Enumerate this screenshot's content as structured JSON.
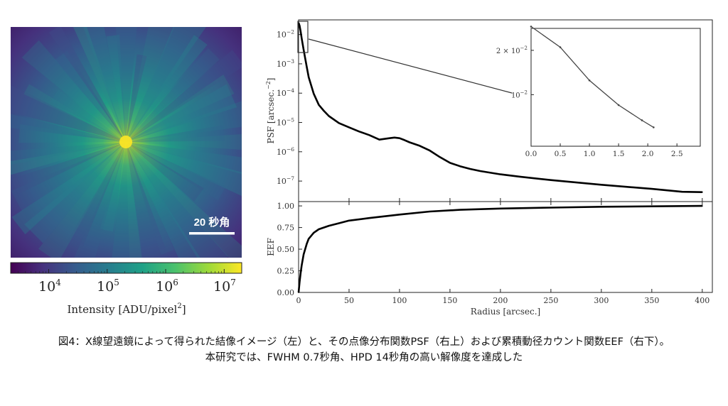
{
  "image_panel": {
    "scale_label": "20 秒角",
    "colorbar": {
      "ticks": [
        {
          "base": "10",
          "exp": "4"
        },
        {
          "base": "10",
          "exp": "5"
        },
        {
          "base": "10",
          "exp": "6"
        },
        {
          "base": "10",
          "exp": "7"
        }
      ],
      "label": "Intensity [ADU/pixel",
      "label_exp": "2",
      "label_close": "]",
      "colors": [
        "#440154",
        "#46327e",
        "#365c8d",
        "#277f8e",
        "#1fa187",
        "#4ac16d",
        "#a0da39",
        "#fde725"
      ]
    }
  },
  "chart_data": [
    {
      "type": "line",
      "name": "psf",
      "ylabel": "PSF [arcsec.",
      "ylabel_exp": "−2",
      "ylabel_close": "]",
      "yscale": "log",
      "xlim": [
        0,
        410
      ],
      "ylim_log10": [
        -7.7,
        -1.5
      ],
      "yticks": [
        {
          "base": "10",
          "exp": "−2",
          "log": -2
        },
        {
          "base": "10",
          "exp": "−3",
          "log": -3
        },
        {
          "base": "10",
          "exp": "−4",
          "log": -4
        },
        {
          "base": "10",
          "exp": "−5",
          "log": -5
        },
        {
          "base": "10",
          "exp": "−6",
          "log": -6
        },
        {
          "base": "10",
          "exp": "−7",
          "log": -7
        }
      ],
      "x": [
        0,
        1,
        2,
        3,
        5,
        8,
        10,
        15,
        20,
        25,
        30,
        40,
        50,
        60,
        70,
        80,
        90,
        95,
        100,
        105,
        110,
        120,
        130,
        140,
        150,
        160,
        170,
        180,
        200,
        220,
        250,
        300,
        350,
        380,
        400
      ],
      "y": [
        0.025,
        0.02,
        0.013,
        0.0075,
        0.003,
        0.0008,
        0.00035,
        9.5e-05,
        4e-05,
        2.5e-05,
        1.65e-05,
        9.5e-06,
        6.8e-06,
        4.9e-06,
        3.7e-06,
        2.6e-06,
        2.9e-06,
        3.05e-06,
        2.9e-06,
        2.5e-06,
        2.1e-06,
        1.6e-06,
        1.1e-06,
        6.6e-07,
        4.2e-07,
        3.2e-07,
        2.6e-07,
        2.2e-07,
        1.7e-07,
        1.4e-07,
        1.08e-07,
        7.5e-08,
        5.4e-08,
        4.3e-08,
        4.2e-08
      ]
    },
    {
      "type": "line",
      "name": "psf-inset",
      "yscale": "log",
      "xlim": [
        0,
        2.9
      ],
      "ylim_log10": [
        -2.35,
        -1.55
      ],
      "xticks": [
        "0.0",
        "0.5",
        "1.0",
        "1.5",
        "2.0",
        "2.5"
      ],
      "xtick_values": [
        0,
        0.5,
        1.0,
        1.5,
        2.0,
        2.5
      ],
      "yticks": [
        {
          "label": "2 × 10",
          "exp": "−2",
          "log": -1.699
        },
        {
          "label": "10",
          "exp": "−2",
          "log": -2
        }
      ],
      "x": [
        0,
        0.5,
        1.0,
        1.5,
        1.9,
        2.1
      ],
      "y": [
        0.029,
        0.021,
        0.0125,
        0.0085,
        0.0067,
        0.006
      ]
    },
    {
      "type": "line",
      "name": "eef",
      "ylabel": "EEF",
      "xlabel": "Radius [arcsec.]",
      "xlim": [
        0,
        410
      ],
      "ylim": [
        0,
        1.05
      ],
      "xticks": [
        "0",
        "50",
        "100",
        "150",
        "200",
        "250",
        "300",
        "350",
        "400"
      ],
      "xtick_values": [
        0,
        50,
        100,
        150,
        200,
        250,
        300,
        350,
        400
      ],
      "yticks": [
        "1.00",
        "0.75",
        "0.50",
        "0.25",
        "0.00"
      ],
      "ytick_values": [
        1.0,
        0.75,
        0.5,
        0.25,
        0.0
      ],
      "x": [
        0,
        1,
        2,
        3,
        5,
        8,
        10,
        15,
        20,
        30,
        40,
        50,
        70,
        100,
        130,
        160,
        200,
        250,
        300,
        350,
        400
      ],
      "y": [
        0,
        0.12,
        0.22,
        0.31,
        0.44,
        0.56,
        0.62,
        0.69,
        0.73,
        0.77,
        0.8,
        0.83,
        0.86,
        0.9,
        0.935,
        0.955,
        0.97,
        0.98,
        0.99,
        0.995,
        1.0
      ]
    }
  ],
  "caption": {
    "line1": "図4：X線望遠鏡によって得られた結像イメージ（左）と、その点像分布関数PSF（右上）および累積動径カウント関数EEF（右下）。",
    "line2": "本研究では、FWHM 0.7秒角、HPD 14秒角の高い解像度を達成した"
  }
}
